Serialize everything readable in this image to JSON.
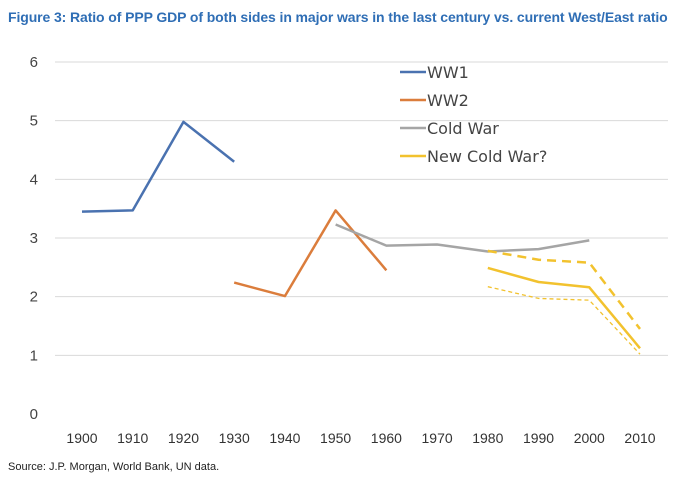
{
  "title": "Figure 3: Ratio of PPP GDP of both sides in major wars in the last century vs. current West/East ratio",
  "source": "Source: J.P. Morgan, World Bank, UN data.",
  "chart_data": {
    "type": "line",
    "xlim": [
      1900,
      2010
    ],
    "ylim": [
      0,
      6
    ],
    "x_ticks": [
      "1900",
      "1910",
      "1920",
      "1930",
      "1940",
      "1950",
      "1960",
      "1970",
      "1980",
      "1990",
      "2000",
      "2010"
    ],
    "y_ticks": [
      "0",
      "1",
      "2",
      "3",
      "4",
      "5",
      "6"
    ],
    "grid": "horizontal",
    "legend_position": "top-right",
    "series": [
      {
        "name": "WW1",
        "color": "#4a72b0",
        "style": "solid",
        "x": [
          1900,
          1910,
          1920,
          1930
        ],
        "y": [
          3.45,
          3.47,
          4.98,
          4.3
        ]
      },
      {
        "name": "WW2",
        "color": "#db7d3c",
        "style": "solid",
        "x": [
          1930,
          1940,
          1950,
          1960
        ],
        "y": [
          2.24,
          2.01,
          3.47,
          2.45
        ]
      },
      {
        "name": "Cold War",
        "color": "#a5a5a5",
        "style": "solid",
        "x": [
          1950,
          1960,
          1970,
          1980,
          1990,
          2000
        ],
        "y": [
          3.23,
          2.87,
          2.89,
          2.77,
          2.81,
          2.96
        ]
      },
      {
        "name": "New Cold War?",
        "color": "#f2c22e",
        "style": "solid",
        "x": [
          1980,
          1990,
          2000,
          2010
        ],
        "y": [
          2.49,
          2.25,
          2.16,
          1.12
        ]
      },
      {
        "name": "",
        "color": "#f2c22e",
        "style": "dashed",
        "x": [
          1980,
          1990,
          2000,
          2010
        ],
        "y": [
          2.78,
          2.63,
          2.58,
          1.45
        ]
      },
      {
        "name": "",
        "color": "#f2c22e",
        "style": "dotted",
        "x": [
          1980,
          1990,
          2000,
          2010
        ],
        "y": [
          2.17,
          1.97,
          1.94,
          1.02
        ]
      }
    ]
  }
}
